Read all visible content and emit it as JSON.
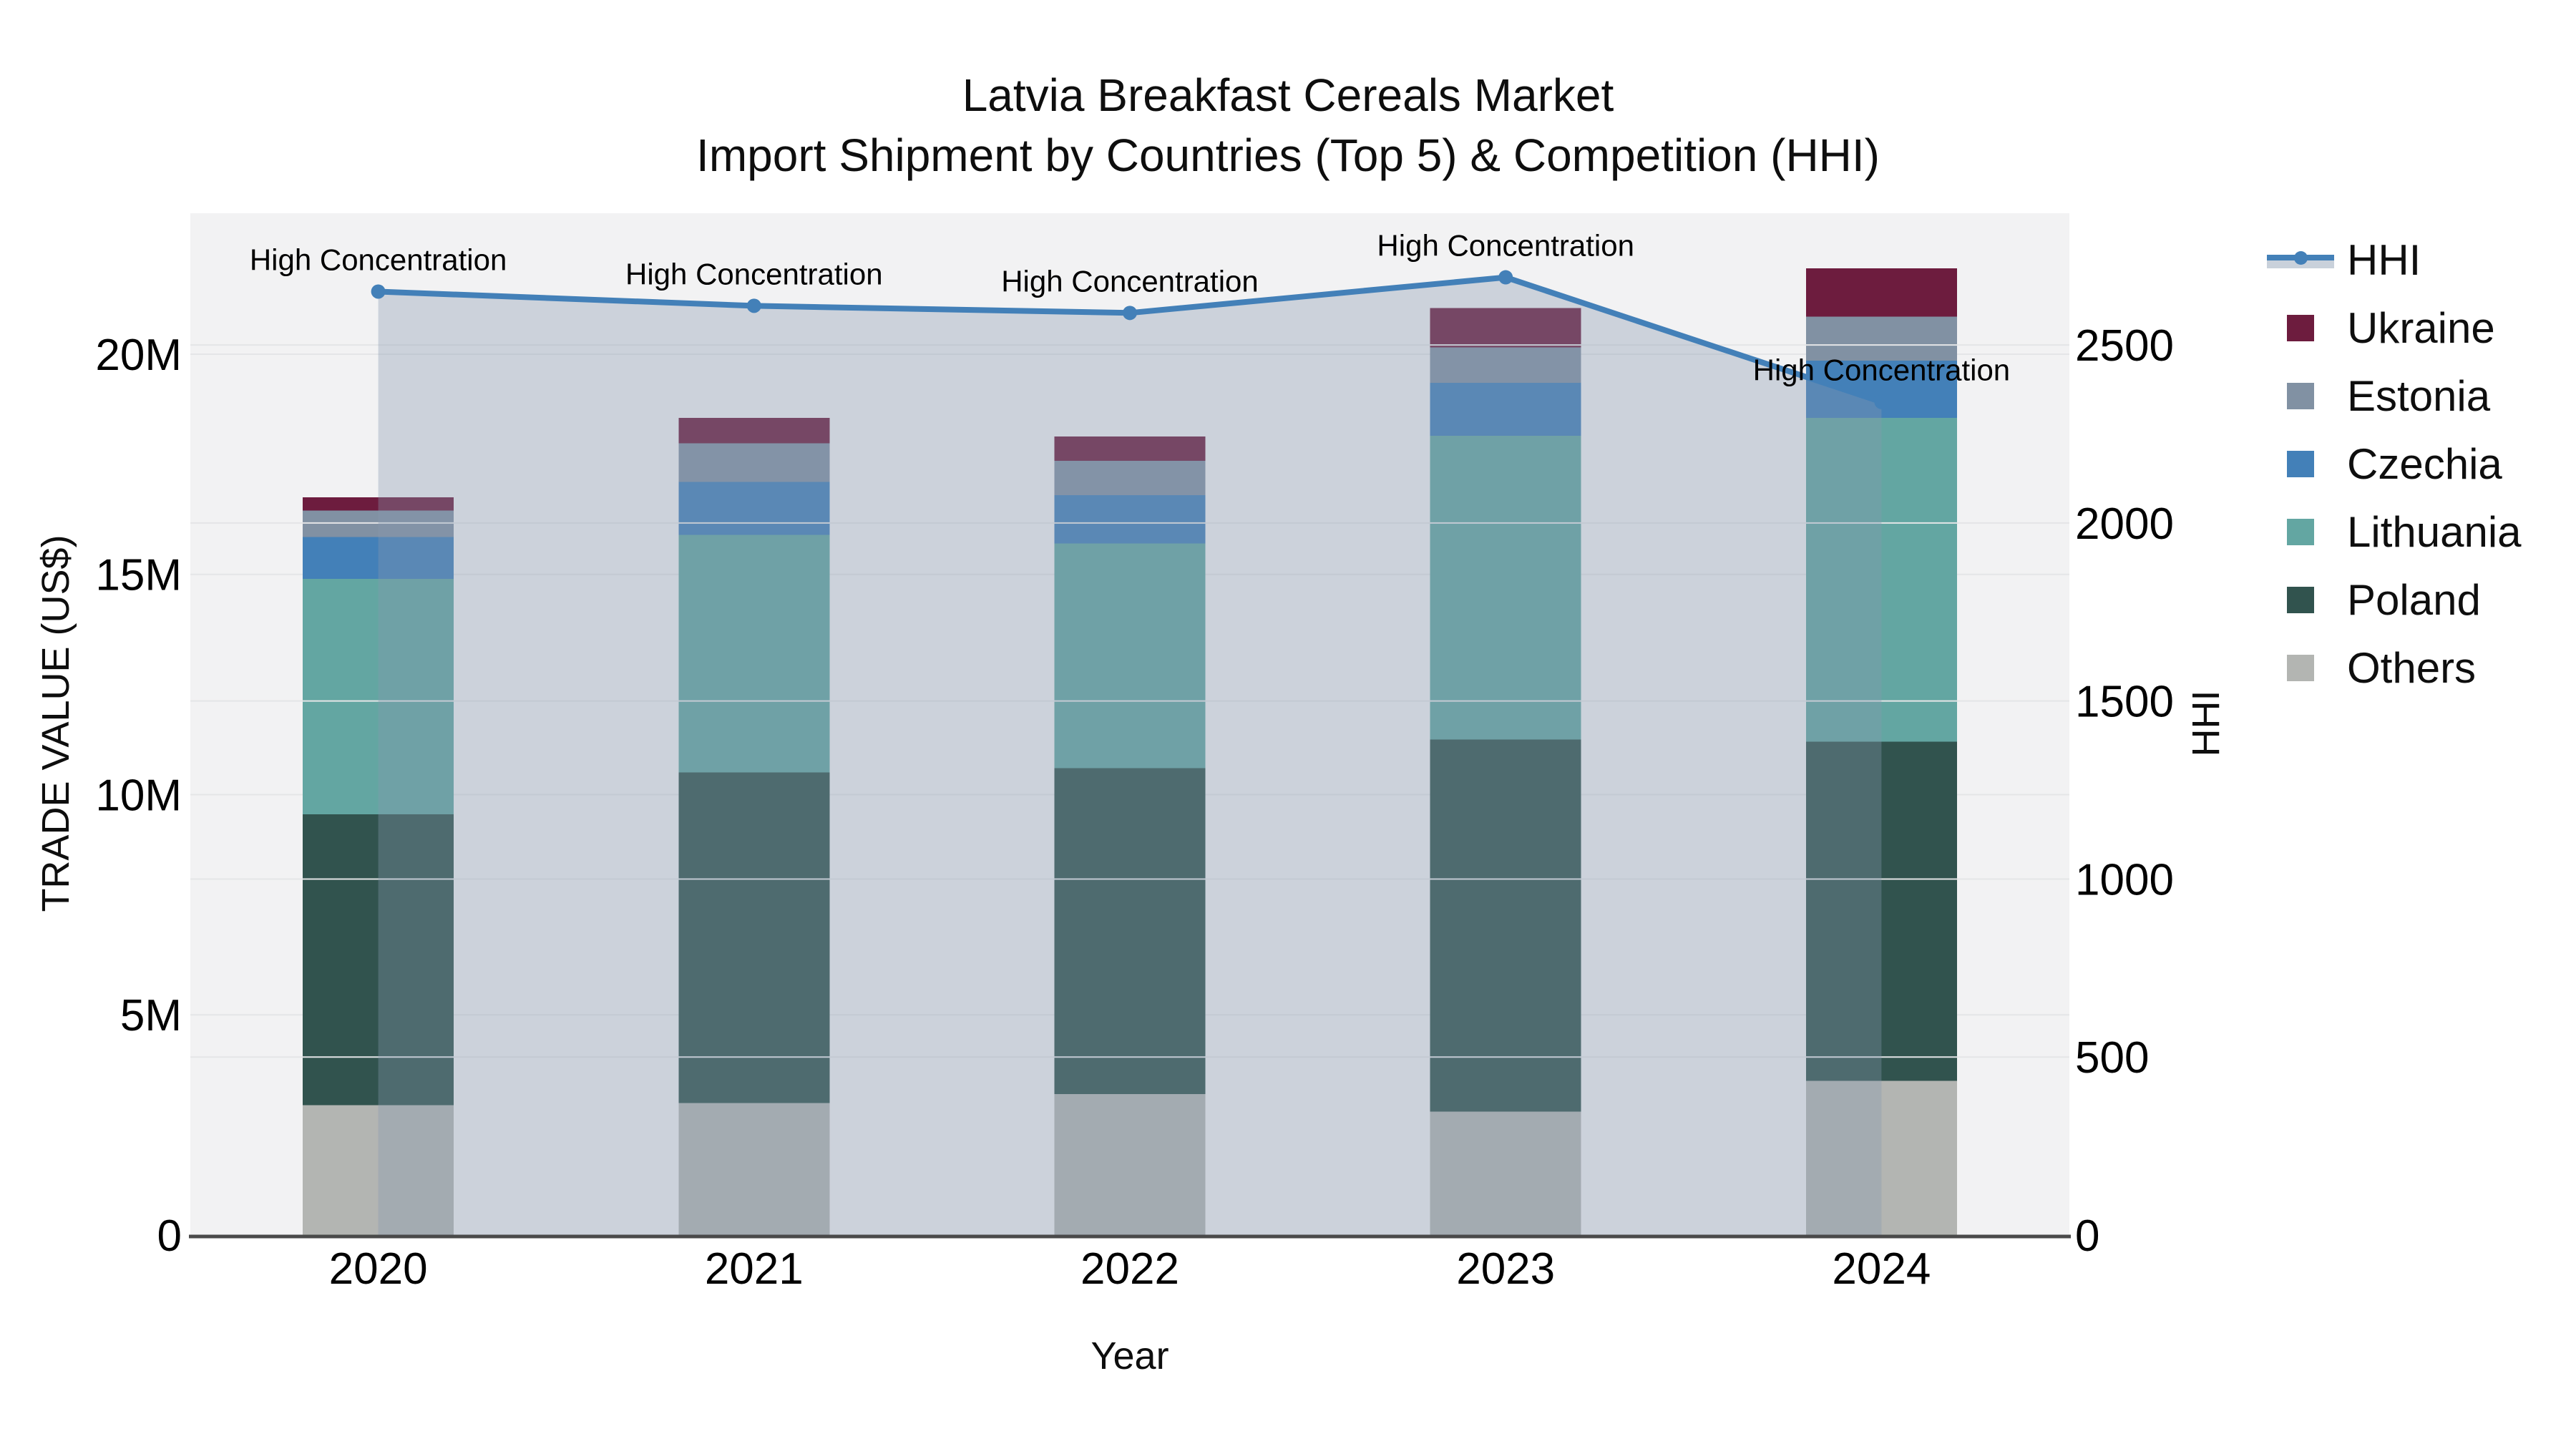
{
  "title": {
    "line1": "Latvia Breakfast Cereals Market",
    "line2": "Import Shipment by Countries (Top 5) & Competition (HHI)"
  },
  "axes": {
    "x": {
      "title": "Year"
    },
    "y_left": {
      "title": "TRADE VALUE (US$)"
    },
    "y_right": {
      "title": "HHI"
    }
  },
  "legend": {
    "items": [
      {
        "label": "HHI",
        "type": "line",
        "color": "#4380b8"
      },
      {
        "label": "Ukraine",
        "type": "bar",
        "color": "#6d1c3e"
      },
      {
        "label": "Estonia",
        "type": "bar",
        "color": "#8191a3"
      },
      {
        "label": "Czechia",
        "type": "bar",
        "color": "#4380b8"
      },
      {
        "label": "Lithuania",
        "type": "bar",
        "color": "#63a6a2"
      },
      {
        "label": "Poland",
        "type": "bar",
        "color": "#31534e"
      },
      {
        "label": "Others",
        "type": "bar",
        "color": "#b3b5b2"
      }
    ]
  },
  "chart_data": {
    "type": "bar+line",
    "stacked": true,
    "categories": [
      "2020",
      "2021",
      "2022",
      "2023",
      "2024"
    ],
    "values_unit": "million US$",
    "series": [
      {
        "name": "Others",
        "color": "#b3b5b2",
        "values": [
          2.95,
          3.0,
          3.2,
          2.8,
          3.5
        ]
      },
      {
        "name": "Poland",
        "color": "#31534e",
        "values": [
          6.6,
          7.5,
          7.4,
          8.45,
          7.7
        ]
      },
      {
        "name": "Lithuania",
        "color": "#63a6a2",
        "values": [
          5.35,
          5.4,
          5.1,
          6.9,
          7.35
        ]
      },
      {
        "name": "Czechia",
        "color": "#4380b8",
        "values": [
          0.95,
          1.2,
          1.1,
          1.2,
          1.3
        ]
      },
      {
        "name": "Estonia",
        "color": "#8191a3",
        "values": [
          0.6,
          0.88,
          0.78,
          0.8,
          1.0
        ]
      },
      {
        "name": "Ukraine",
        "color": "#6d1c3e",
        "values": [
          0.3,
          0.57,
          0.55,
          0.9,
          1.1
        ]
      }
    ],
    "line_series": {
      "name": "HHI",
      "color": "#4380b8",
      "fill_color": "rgba(136,152,175,0.35)",
      "values": [
        2650,
        2610,
        2590,
        2690,
        2340
      ]
    },
    "annotations": [
      {
        "x": "2020",
        "text": "High Concentration"
      },
      {
        "x": "2021",
        "text": "High Concentration"
      },
      {
        "x": "2022",
        "text": "High Concentration"
      },
      {
        "x": "2023",
        "text": "High Concentration"
      },
      {
        "x": "2024",
        "text": "High Concentration"
      }
    ],
    "xlabel": "Year",
    "ylabel": "TRADE VALUE (US$)",
    "ylabel_right": "HHI",
    "ylim_left": [
      0,
      23.2
    ],
    "ylim_right": [
      0,
      2870
    ],
    "yticks_left": {
      "values": [
        0,
        5,
        10,
        15,
        20
      ],
      "labels": [
        "0",
        "5M",
        "10M",
        "15M",
        "20M"
      ]
    },
    "yticks_right": {
      "values": [
        0,
        500,
        1000,
        1500,
        2000,
        2500
      ],
      "labels": [
        "0",
        "500",
        "1000",
        "1500",
        "2000",
        "2500"
      ]
    },
    "grid": true,
    "legend_position": "right",
    "plot_bg": "#f2f2f3",
    "grid_color": "#e4e5e7",
    "axis_line_color": "#4a4a4a"
  }
}
